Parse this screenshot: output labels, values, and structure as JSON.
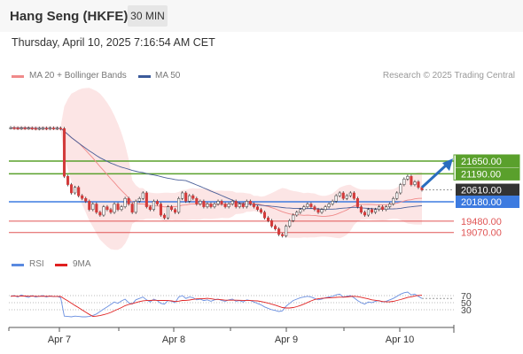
{
  "header": {
    "title": "Hang Seng (HKFE)",
    "timeframe": "30 MIN"
  },
  "datetime": "Thursday, April 10, 2025 7:16:54 AM CET",
  "legend": {
    "ma20": "MA 20 + Bollinger Bands",
    "ma50": "MA 50"
  },
  "copyright": "Research © 2025 Trading Central",
  "rsi_legend": {
    "rsi": "RSI",
    "ma9": "9MA"
  },
  "colors": {
    "resistance": "#5aa02c",
    "pivot": "#3d7be0",
    "support": "#e05555",
    "bands": "#fbdcdc",
    "ma50": "#4a5f99",
    "arrow": "#2a6dbf"
  },
  "chart_data": [
    {
      "type": "line",
      "title": "",
      "x_ticks": [
        "Apr 7",
        "Apr 8",
        "Apr 9",
        "Apr 10"
      ],
      "levels": [
        {
          "label": "21650.00",
          "value": 21650,
          "kind": "resistance"
        },
        {
          "label": "21190.00",
          "value": 21190,
          "kind": "resistance"
        },
        {
          "label": "20610.00",
          "value": 20610,
          "kind": "last"
        },
        {
          "label": "20180.00",
          "value": 20180,
          "kind": "pivot"
        },
        {
          "label": "19480.00",
          "value": 19480,
          "kind": "support"
        },
        {
          "label": "19070.00",
          "value": 19070,
          "kind": "support"
        }
      ],
      "price_close": [
        22850,
        22840,
        22830,
        22845,
        22835,
        22840,
        22830,
        22820,
        22830,
        22835,
        22825,
        22840,
        22830,
        22835,
        22820,
        21100,
        20800,
        20500,
        20700,
        20400,
        20300,
        20200,
        19900,
        20100,
        19800,
        19700,
        20000,
        19900,
        19800,
        20100,
        19900,
        20000,
        20300,
        20100,
        19800,
        20200,
        20300,
        20500,
        20000,
        19900,
        20200,
        20100,
        19700,
        19600,
        20000,
        19900,
        19800,
        20300,
        20500,
        20200,
        20400,
        20300,
        20100,
        20200,
        20000,
        20100,
        20000,
        20100,
        20200,
        20100,
        20000,
        20100,
        20200,
        20000,
        20100,
        20000,
        20200,
        20100,
        20000,
        19900,
        19800,
        19600,
        19500,
        19300,
        19200,
        19000,
        18950,
        19300,
        19500,
        19700,
        19800,
        19900,
        20000,
        20100,
        20000,
        19900,
        19800,
        19900,
        20000,
        20100,
        20200,
        20400,
        20500,
        20300,
        20400,
        20500,
        20300,
        20000,
        19800,
        19700,
        19900,
        19800,
        19900,
        20000,
        19900,
        20000,
        20100,
        20300,
        20500,
        20800,
        21000,
        21100,
        20800,
        20900,
        20700,
        20610
      ],
      "rsi": [
        68,
        70,
        66,
        72,
        68,
        65,
        70,
        66,
        68,
        70,
        66,
        69,
        67,
        68,
        64,
        12,
        11,
        10,
        12,
        11,
        10,
        10,
        11,
        14,
        18,
        25,
        32,
        38,
        45,
        52,
        48,
        55,
        60,
        50,
        46,
        58,
        62,
        66,
        58,
        52,
        60,
        56,
        48,
        46,
        56,
        54,
        50,
        66,
        70,
        62,
        66,
        64,
        58,
        60,
        56,
        58,
        54,
        58,
        60,
        56,
        54,
        58,
        60,
        54,
        56,
        52,
        58,
        56,
        52,
        48,
        44,
        38,
        34,
        30,
        28,
        25,
        27,
        40,
        48,
        56,
        60,
        64,
        66,
        68,
        66,
        62,
        58,
        60,
        64,
        66,
        68,
        72,
        74,
        66,
        68,
        70,
        64,
        56,
        50,
        46,
        52,
        50,
        54,
        56,
        52,
        54,
        58,
        62,
        68,
        74,
        78,
        80,
        72,
        74,
        68,
        62
      ],
      "rsi_levels": [
        70,
        50,
        30
      ]
    }
  ]
}
